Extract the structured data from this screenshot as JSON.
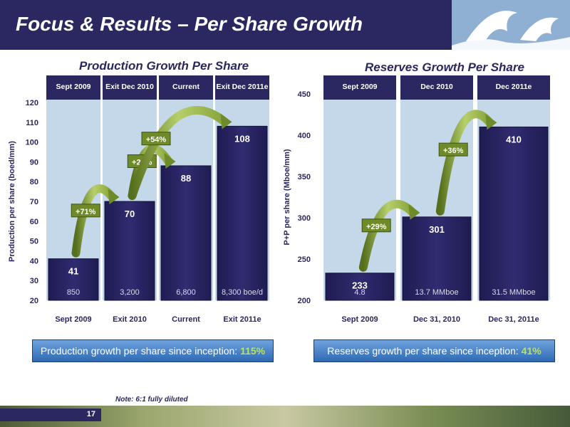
{
  "header": {
    "title": "Focus & Results – Per Share Growth"
  },
  "footer": {
    "note": "Note: 6:1 fully diluted",
    "page": "17"
  },
  "colors": {
    "bar": "#2b2760",
    "band": "#c4d8ea",
    "arrow": "#6f8a28",
    "header": "#2b2760"
  },
  "summary": {
    "production": {
      "text": "Production growth per share since inception: ",
      "pct": "115%"
    },
    "reserves": {
      "text": "Reserves growth per share since inception: ",
      "pct": "41%"
    }
  },
  "chart_data": [
    {
      "type": "bar",
      "title": "Production Growth Per Share",
      "ylabel": "Production per share (boed/mm)",
      "ylim": [
        20,
        120
      ],
      "yticks": [
        20,
        30,
        40,
        50,
        60,
        70,
        80,
        90,
        100,
        110,
        120
      ],
      "categories": [
        "Sept 2009",
        "Exit 2010",
        "Current",
        "Exit 2011e"
      ],
      "headers": [
        "Sept 2009",
        "Exit Dec 2010",
        "Current",
        "Exit Dec 2011e"
      ],
      "values": [
        41,
        70,
        88,
        108
      ],
      "sublabels": [
        "850",
        "3,200",
        "6,800",
        "8,300 boe/d"
      ],
      "growth": [
        {
          "label": "+71%",
          "from": 0,
          "to": 1
        },
        {
          "label": "+26%",
          "from": 1,
          "to": 2
        },
        {
          "label": "+54%",
          "from": 1,
          "to": 3
        }
      ]
    },
    {
      "type": "bar",
      "title": "Reserves Growth Per Share",
      "ylabel": "P+P per share (Mboe/mm)",
      "ylim": [
        200,
        450
      ],
      "yticks": [
        200,
        250,
        300,
        350,
        400,
        450
      ],
      "categories": [
        "Sept 2009",
        "Dec 31, 2010",
        "Dec 31, 2011e"
      ],
      "headers": [
        "Sept 2009",
        "Dec 2010",
        "Dec 2011e"
      ],
      "values": [
        233,
        301,
        410
      ],
      "sublabels": [
        "4.8",
        "13.7  MMboe",
        "31.5  MMboe"
      ],
      "growth": [
        {
          "label": "+29%",
          "from": 0,
          "to": 1
        },
        {
          "label": "+36%",
          "from": 1,
          "to": 2
        }
      ]
    }
  ]
}
